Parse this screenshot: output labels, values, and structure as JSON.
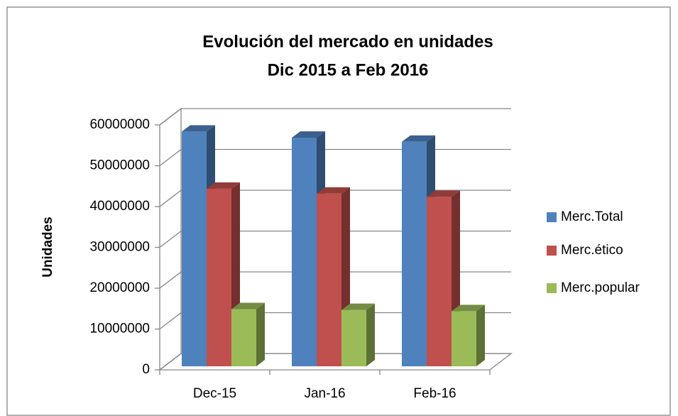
{
  "chart_data": {
    "type": "bar3d",
    "title": "Evolución del mercado en unidades",
    "subtitle": "Dic 2015 a Feb 2016",
    "y_label": "Unidades",
    "categories": [
      "Dec-15",
      "Jan-16",
      "Feb-16"
    ],
    "series": [
      {
        "name": "Merc.Total",
        "color": "#4f81bd",
        "values": [
          57500000,
          56000000,
          55000000
        ]
      },
      {
        "name": "Merc.ético",
        "color": "#c0504d",
        "values": [
          43500000,
          42300000,
          41500000
        ]
      },
      {
        "name": "Merc.popular",
        "color": "#9bbb59",
        "values": [
          14000000,
          13800000,
          13500000
        ]
      }
    ],
    "ylim": [
      0,
      60000000
    ],
    "yticks": [
      0,
      10000000,
      20000000,
      30000000,
      40000000,
      50000000,
      60000000
    ],
    "grid": true,
    "legend": "right"
  }
}
